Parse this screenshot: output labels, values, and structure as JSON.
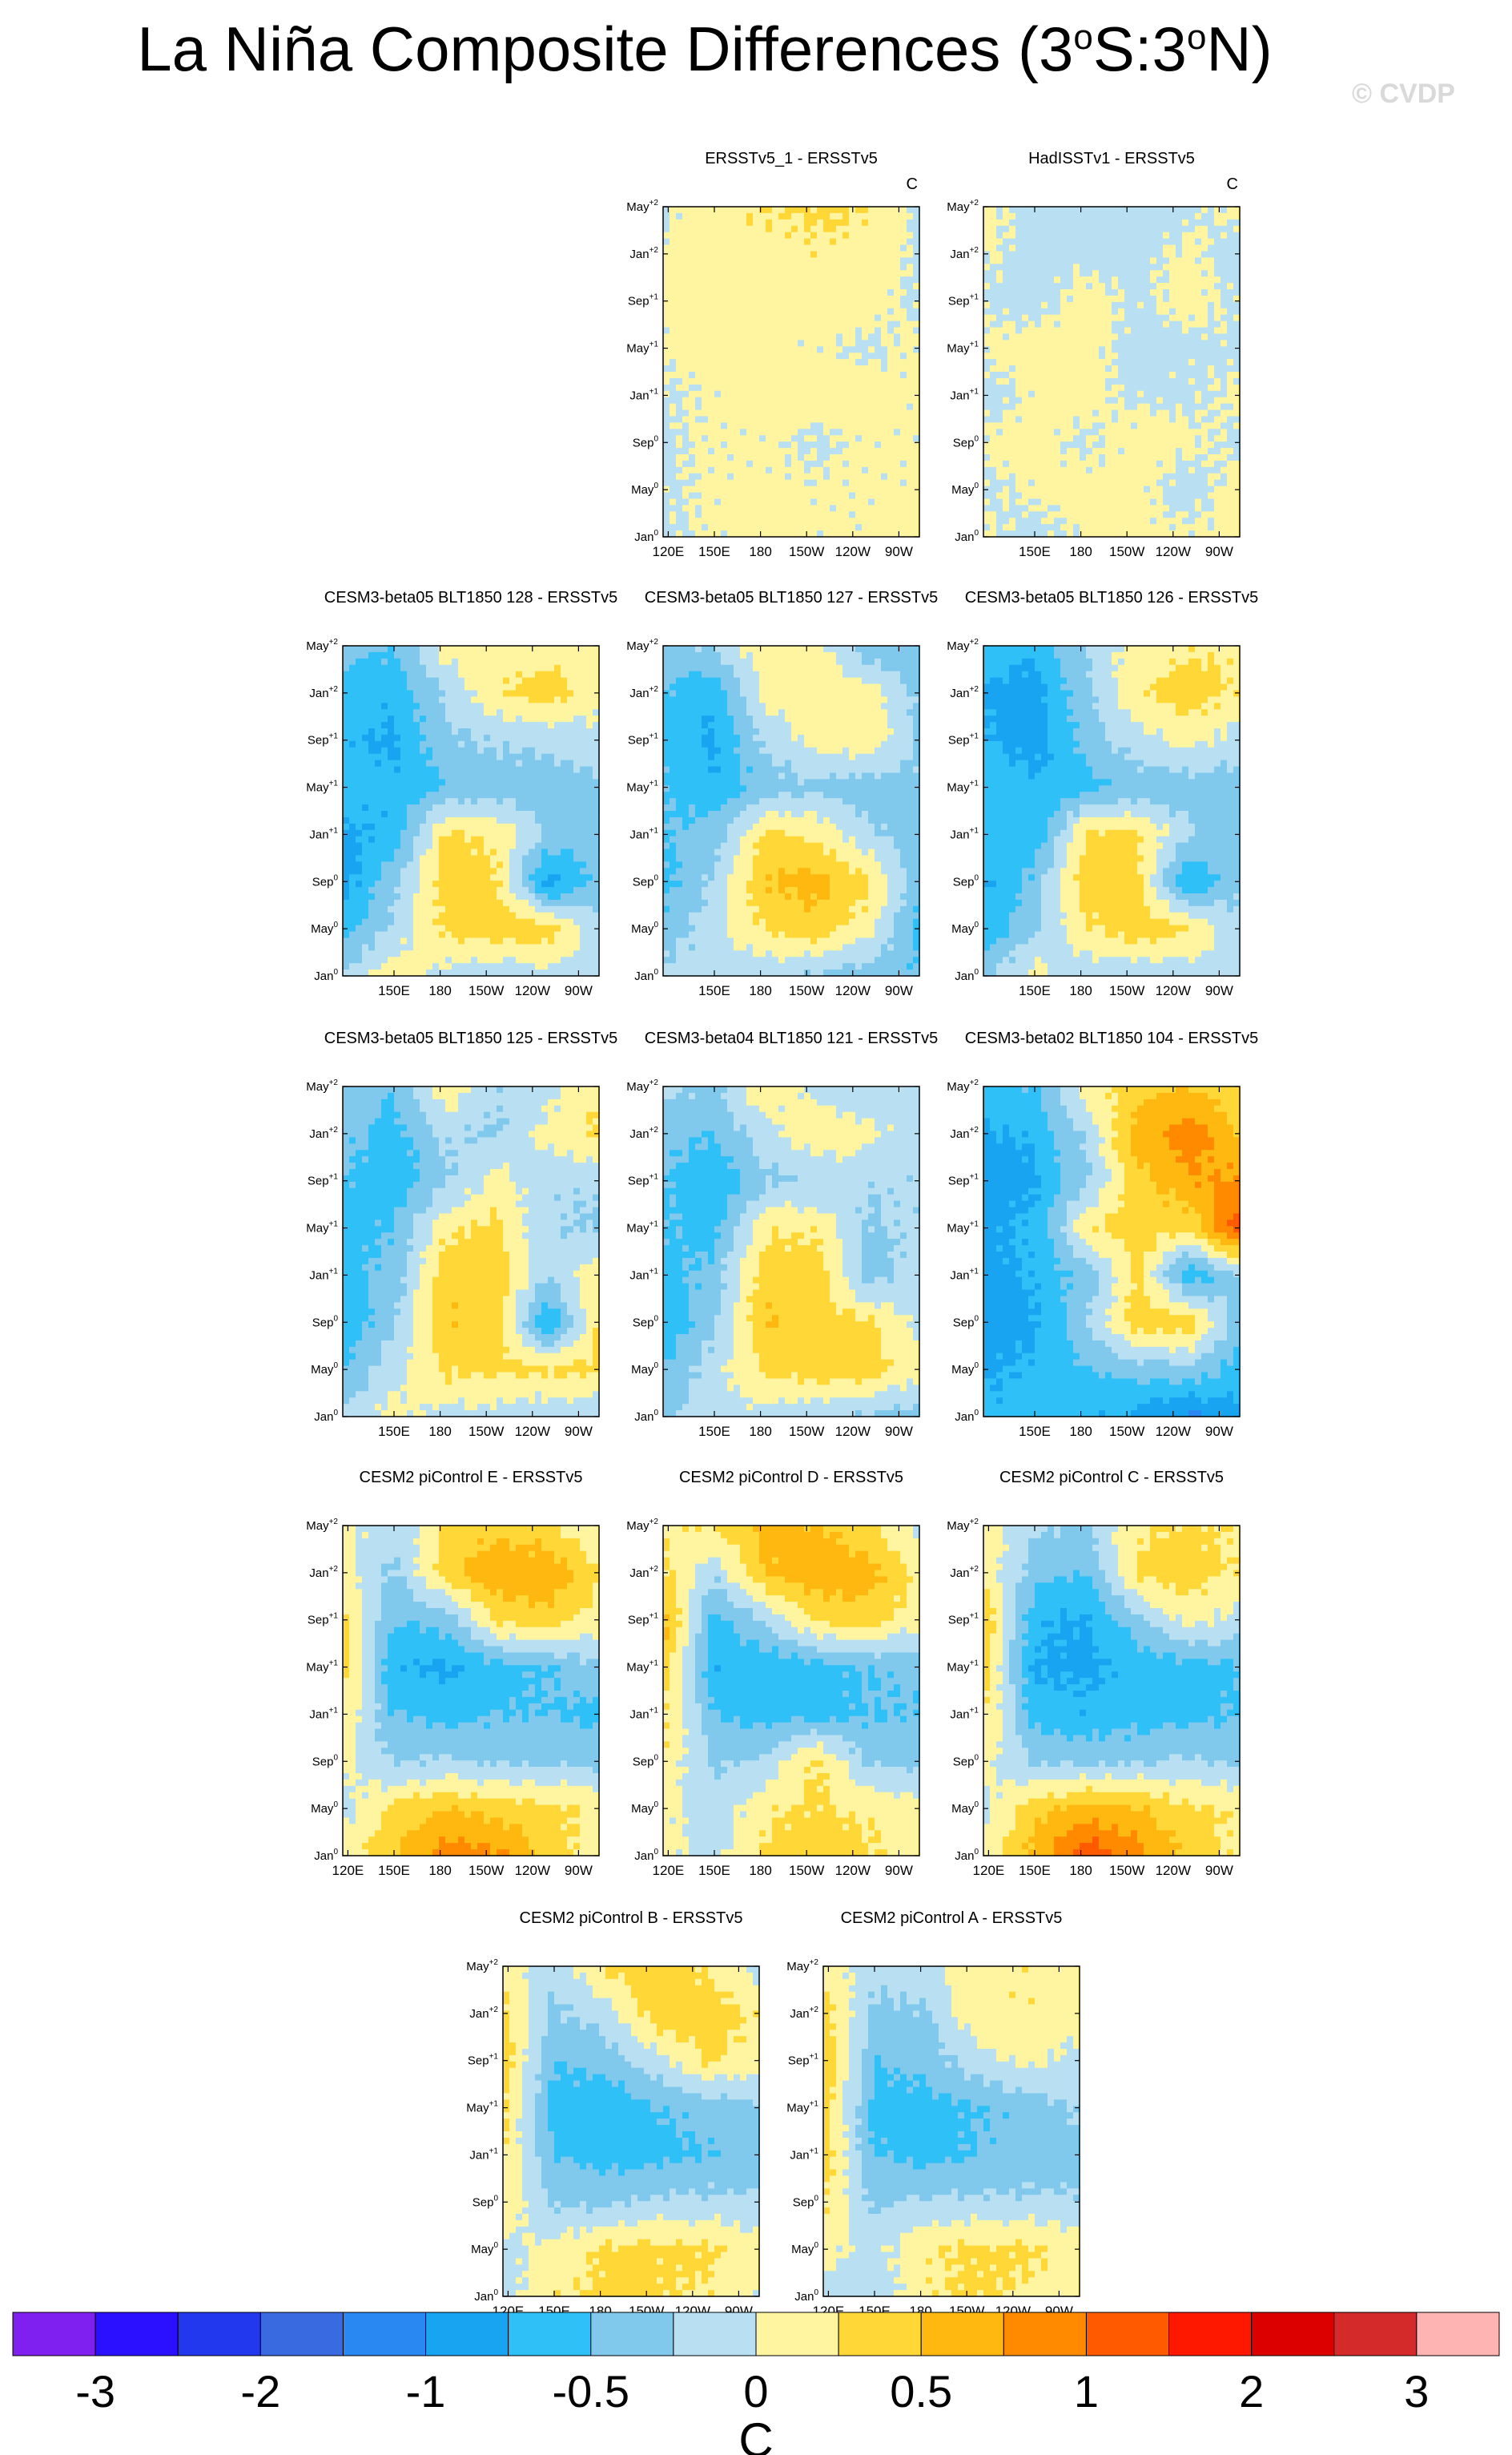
{
  "title": {
    "prefix": "La Niña Composite Differences (3",
    "sup1": "o",
    "mid": "S:3",
    "sup2": "o",
    "suffix": "N)"
  },
  "watermark": "© CVDP",
  "units": "C",
  "y_ticks": [
    "May+2",
    "Jan+2",
    "Sep+1",
    "May+1",
    "Jan+1",
    "Sep0",
    "May0",
    "Jan0"
  ],
  "x_ticks_full": [
    "120E",
    "150E",
    "180",
    "150W",
    "120W",
    "90W"
  ],
  "x_ticks_short": [
    "150E",
    "180",
    "150W",
    "120W",
    "90W"
  ],
  "colors": {
    "neg": [
      "#8020f0",
      "#2a10ff",
      "#2238ee",
      "#3a6ae0",
      "#2a88f2",
      "#18a4f0",
      "#2ec0f6",
      "#80c8ec",
      "#b8e0f2"
    ],
    "pos": [
      "#fff5a0",
      "#ffd838",
      "#ffb810",
      "#ff8a00",
      "#ff5a00",
      "#ff1800",
      "#dc0000",
      "#d42a2a",
      "#ffb4b4"
    ]
  },
  "chart_data": {
    "type": "heatmap",
    "xlabel": "",
    "ylabel": "",
    "colorbar": {
      "labels": [
        "-3",
        "-2",
        "-1",
        "-0.5",
        "0",
        "0.5",
        "1",
        "2",
        "3"
      ],
      "levels": [
        -3,
        -2.5,
        -2,
        -1.5,
        -1,
        -0.75,
        -0.5,
        -0.25,
        0,
        0.25,
        0.5,
        0.75,
        1,
        1.5,
        2,
        2.5,
        3
      ],
      "unit": "C"
    },
    "panels": [
      {
        "title": "ERSSTv5_1 - ERSSTv5",
        "unit_label": "C",
        "x_axis": "full",
        "pattern": [
          [
            -0.05,
            0.2,
            0.25,
            0.3,
            0.25,
            -0.05
          ],
          [
            0.05,
            0.15,
            0.15,
            0.2,
            0.15,
            -0.05
          ],
          [
            0.05,
            0.1,
            0.1,
            0.1,
            0.1,
            -0.05
          ],
          [
            0.05,
            0.1,
            0.05,
            0.05,
            -0.05,
            0.05
          ],
          [
            -0.05,
            0.05,
            0.1,
            0.1,
            0.1,
            0.05
          ],
          [
            -0.05,
            0.05,
            0.05,
            -0.05,
            0.05,
            0.05
          ],
          [
            -0.05,
            0.05,
            0.05,
            0.05,
            0.05,
            0.05
          ],
          [
            -0.05,
            0.05,
            0.1,
            0.05,
            0.05,
            0.1
          ]
        ]
      },
      {
        "title": "HadISSTv1 - ERSSTv5",
        "unit_label": "C",
        "x_axis": "short",
        "pattern": [
          [
            0.1,
            -0.1,
            -0.1,
            -0.1,
            -0.05,
            0.05
          ],
          [
            0.05,
            -0.1,
            -0.05,
            -0.1,
            0.05,
            -0.1
          ],
          [
            -0.05,
            -0.1,
            0.1,
            -0.05,
            0.1,
            -0.05
          ],
          [
            0.05,
            0.1,
            0.1,
            -0.1,
            -0.05,
            -0.05
          ],
          [
            -0.1,
            0.05,
            0.1,
            -0.05,
            -0.05,
            0.05
          ],
          [
            0.05,
            0.1,
            -0.05,
            0.1,
            0.05,
            -0.05
          ],
          [
            -0.05,
            0.05,
            0.1,
            0.05,
            -0.1,
            0.1
          ],
          [
            0.05,
            -0.1,
            0.05,
            0.1,
            0.05,
            0.05
          ]
        ]
      },
      {
        "title": "CESM3-beta05 BLT1850 128 - ERSSTv5",
        "unit_label": "",
        "x_axis": "short",
        "pattern": [
          [
            -0.4,
            -0.5,
            0.1,
            0.1,
            0.1,
            0.1
          ],
          [
            -0.6,
            -0.7,
            -0.2,
            0.2,
            0.4,
            0.1
          ],
          [
            -0.7,
            -0.8,
            -0.3,
            -0.2,
            -0.2,
            -0.1
          ],
          [
            -0.6,
            -0.7,
            -0.5,
            -0.4,
            -0.4,
            -0.3
          ],
          [
            -0.8,
            -0.7,
            0.3,
            0.2,
            -0.3,
            -0.4
          ],
          [
            -0.9,
            -0.3,
            0.4,
            0.3,
            -0.9,
            -0.4
          ],
          [
            -0.6,
            -0.2,
            0.3,
            0.4,
            0.4,
            -0.2
          ],
          [
            -0.2,
            0.2,
            -0.1,
            -0.2,
            -0.1,
            -0.1
          ]
        ]
      },
      {
        "title": "CESM3-beta05 BLT1850 127 - ERSSTv5",
        "unit_label": "",
        "x_axis": "short",
        "pattern": [
          [
            -0.3,
            -0.2,
            0.2,
            0.1,
            -0.4,
            -0.5
          ],
          [
            -0.5,
            -0.7,
            0.1,
            0.2,
            0.1,
            -0.3
          ],
          [
            -0.6,
            -0.8,
            -0.2,
            0.1,
            0.2,
            -0.3
          ],
          [
            -0.5,
            -0.7,
            -0.4,
            -0.3,
            -0.4,
            -0.3
          ],
          [
            -0.5,
            -0.4,
            0.3,
            0.2,
            -0.2,
            -0.4
          ],
          [
            -0.6,
            -0.2,
            0.5,
            0.6,
            0.3,
            -0.4
          ],
          [
            -0.4,
            -0.1,
            0.3,
            0.4,
            0.1,
            -0.6
          ],
          [
            -0.2,
            -0.1,
            -0.2,
            -0.3,
            -0.4,
            -0.5
          ]
        ]
      },
      {
        "title": "CESM3-beta05 BLT1850 126 - ERSSTv5",
        "unit_label": "",
        "x_axis": "short",
        "pattern": [
          [
            -0.5,
            -0.7,
            -0.2,
            0.1,
            0.2,
            0.2
          ],
          [
            -0.8,
            -0.9,
            -0.3,
            0.2,
            0.4,
            0.2
          ],
          [
            -0.7,
            -0.9,
            -0.4,
            -0.1,
            0.1,
            -0.1
          ],
          [
            -0.6,
            -0.7,
            -0.6,
            -0.4,
            -0.4,
            -0.4
          ],
          [
            -0.6,
            -0.7,
            0.3,
            0.3,
            -0.2,
            -0.4
          ],
          [
            -0.8,
            -0.4,
            0.4,
            0.3,
            -0.8,
            -0.3
          ],
          [
            -0.7,
            -0.3,
            0.2,
            0.4,
            0.3,
            -0.2
          ],
          [
            -0.3,
            0.1,
            -0.2,
            -0.2,
            -0.2,
            -0.1
          ]
        ]
      },
      {
        "title": "CESM3-beta05 BLT1850 125 - ERSSTv5",
        "unit_label": "",
        "x_axis": "short",
        "pattern": [
          [
            -0.3,
            -0.5,
            0.2,
            -0.2,
            -0.1,
            0.2
          ],
          [
            -0.4,
            -0.6,
            -0.2,
            -0.3,
            0.1,
            0.3
          ],
          [
            -0.5,
            -0.7,
            -0.3,
            0.1,
            -0.2,
            -0.2
          ],
          [
            -0.6,
            -0.5,
            0.2,
            0.3,
            -0.2,
            -0.3
          ],
          [
            -0.6,
            -0.4,
            0.4,
            0.4,
            -0.2,
            0.2
          ],
          [
            -0.7,
            -0.3,
            0.5,
            0.4,
            -0.8,
            0.3
          ],
          [
            -0.5,
            -0.1,
            0.3,
            0.3,
            0.3,
            0.3
          ],
          [
            -0.2,
            0.1,
            -0.1,
            -0.1,
            -0.2,
            -0.2
          ]
        ]
      },
      {
        "title": "CESM3-beta04 BLT1850 121 - ERSSTv5",
        "unit_label": "",
        "x_axis": "short",
        "pattern": [
          [
            -0.2,
            -0.3,
            0.2,
            -0.1,
            -0.2,
            -0.2
          ],
          [
            -0.4,
            -0.5,
            -0.1,
            0.2,
            0.1,
            -0.2
          ],
          [
            -0.5,
            -0.7,
            -0.3,
            -0.2,
            -0.2,
            -0.2
          ],
          [
            -0.5,
            -0.6,
            0.2,
            0.2,
            -0.3,
            -0.2
          ],
          [
            -0.6,
            -0.4,
            0.4,
            0.4,
            -0.4,
            -0.1
          ],
          [
            -0.7,
            -0.3,
            0.5,
            0.4,
            0.3,
            -0.1
          ],
          [
            -0.5,
            -0.1,
            0.3,
            0.4,
            0.4,
            0.1
          ],
          [
            -0.3,
            -0.1,
            -0.1,
            -0.2,
            -0.3,
            -0.4
          ]
        ]
      },
      {
        "title": "CESM3-beta02 BLT1850 104 - ERSSTv5",
        "unit_label": "",
        "x_axis": "short",
        "pattern": [
          [
            -0.6,
            -0.5,
            0.1,
            0.4,
            0.5,
            0.3
          ],
          [
            -0.8,
            -0.7,
            -0.2,
            0.6,
            0.9,
            0.5
          ],
          [
            -0.9,
            -0.8,
            -0.3,
            0.4,
            0.7,
            0.8
          ],
          [
            -0.8,
            -0.7,
            0.2,
            0.4,
            0.3,
            1.2
          ],
          [
            -0.9,
            -0.7,
            -0.4,
            0.3,
            -0.7,
            -0.3
          ],
          [
            -0.9,
            -0.8,
            -0.3,
            0.4,
            0.4,
            -0.4
          ],
          [
            -0.8,
            -0.7,
            -0.5,
            -0.4,
            -0.3,
            -0.6
          ],
          [
            -0.7,
            -0.6,
            -0.7,
            -0.8,
            -1.1,
            -0.8
          ]
        ]
      },
      {
        "title": "CESM2 piControl E - ERSSTv5",
        "unit_label": "",
        "x_axis": "full",
        "pattern": [
          [
            0.1,
            -0.2,
            0.3,
            0.4,
            0.3,
            -0.1
          ],
          [
            0.1,
            -0.3,
            0.4,
            0.7,
            0.7,
            0.3
          ],
          [
            0.3,
            -0.5,
            -0.4,
            0.3,
            0.4,
            0.1
          ],
          [
            0.4,
            -0.7,
            -0.8,
            -0.6,
            -0.5,
            -0.3
          ],
          [
            0.2,
            -0.5,
            -0.6,
            -0.5,
            -0.5,
            -0.6
          ],
          [
            0.1,
            -0.3,
            -0.2,
            -0.3,
            -0.3,
            -0.3
          ],
          [
            -0.1,
            0.3,
            0.5,
            0.4,
            0.3,
            0.2
          ],
          [
            0.1,
            0.5,
            0.9,
            0.8,
            0.4,
            0.1
          ]
        ]
      },
      {
        "title": "CESM2 piControl D - ERSSTv5",
        "unit_label": "",
        "x_axis": "full",
        "pattern": [
          [
            0.2,
            0.3,
            0.6,
            0.5,
            0.3,
            -0.1
          ],
          [
            0.3,
            -0.2,
            0.5,
            0.7,
            0.6,
            0.2
          ],
          [
            0.6,
            -0.6,
            -0.2,
            0.3,
            0.4,
            0.1
          ],
          [
            0.4,
            -0.7,
            -0.7,
            -0.6,
            -0.5,
            -0.4
          ],
          [
            0.3,
            -0.5,
            -0.6,
            -0.6,
            -0.5,
            -0.5
          ],
          [
            0.2,
            -0.3,
            -0.2,
            0.3,
            -0.3,
            -0.3
          ],
          [
            0.1,
            -0.2,
            0.2,
            0.3,
            0.2,
            0.1
          ],
          [
            0.1,
            -0.1,
            0.3,
            0.4,
            0.3,
            0.1
          ]
        ]
      },
      {
        "title": "CESM2 piControl C - ERSSTv5",
        "unit_label": "",
        "x_axis": "full",
        "pattern": [
          [
            0.1,
            -0.2,
            -0.3,
            0.2,
            0.3,
            0.2
          ],
          [
            0.2,
            -0.4,
            -0.5,
            0.3,
            0.4,
            0.2
          ],
          [
            0.5,
            -0.7,
            -0.8,
            -0.3,
            0.1,
            -0.1
          ],
          [
            0.4,
            -0.8,
            -0.8,
            -0.7,
            -0.6,
            -0.5
          ],
          [
            0.3,
            -0.6,
            -0.7,
            -0.6,
            -0.6,
            -0.5
          ],
          [
            0.1,
            -0.3,
            -0.3,
            -0.3,
            -0.2,
            -0.3
          ],
          [
            -0.1,
            0.4,
            0.6,
            0.5,
            0.3,
            0.2
          ],
          [
            0.1,
            0.6,
            1.2,
            0.9,
            0.4,
            0.2
          ]
        ]
      },
      {
        "title": "CESM2 piControl B - ERSSTv5",
        "unit_label": "",
        "x_axis": "full",
        "pattern": [
          [
            0.2,
            -0.2,
            0.3,
            0.4,
            0.2,
            -0.1
          ],
          [
            0.3,
            -0.3,
            -0.1,
            0.4,
            0.4,
            0.2
          ],
          [
            0.4,
            -0.5,
            -0.4,
            -0.1,
            0.3,
            0.1
          ],
          [
            0.3,
            -0.6,
            -0.7,
            -0.5,
            -0.4,
            -0.3
          ],
          [
            0.3,
            -0.5,
            -0.6,
            -0.6,
            -0.5,
            -0.4
          ],
          [
            0.2,
            -0.3,
            -0.3,
            -0.2,
            -0.2,
            -0.2
          ],
          [
            -0.1,
            0.1,
            0.3,
            0.3,
            0.3,
            0.1
          ],
          [
            -0.1,
            0.2,
            0.3,
            0.3,
            0.2,
            0.0
          ]
        ]
      },
      {
        "title": "CESM2 piControl A - ERSSTv5",
        "unit_label": "",
        "x_axis": "full",
        "pattern": [
          [
            0.2,
            -0.2,
            -0.1,
            0.2,
            0.2,
            0.1
          ],
          [
            0.4,
            -0.3,
            -0.3,
            0.2,
            0.2,
            0.1
          ],
          [
            0.5,
            -0.5,
            -0.4,
            -0.1,
            0.1,
            -0.1
          ],
          [
            0.4,
            -0.6,
            -0.6,
            -0.5,
            -0.4,
            -0.2
          ],
          [
            0.4,
            -0.5,
            -0.6,
            -0.5,
            -0.4,
            -0.4
          ],
          [
            0.3,
            -0.3,
            -0.2,
            -0.2,
            -0.2,
            -0.2
          ],
          [
            0.1,
            -0.1,
            0.2,
            0.3,
            0.3,
            0.1
          ],
          [
            -0.1,
            -0.2,
            0.2,
            0.3,
            0.2,
            0.1
          ]
        ]
      }
    ]
  }
}
